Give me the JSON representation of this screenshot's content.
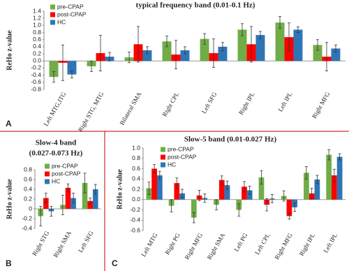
{
  "chart_data": [
    {
      "type": "bar",
      "panel": "A",
      "title_lines": [
        "typical frequency band (0.01-0.1 Hz)"
      ],
      "y_label": "ReHo z-value",
      "categories": [
        "Left MTG,ITG",
        "Right STG, MTG",
        "Bilateral SMA",
        "Right CPL",
        "Left SFG",
        "Right IPL",
        "Left IPL",
        "Right MFG"
      ],
      "series": [
        {
          "name": "pre-CPAP",
          "color": "#70ad47",
          "values": [
            -0.45,
            -0.15,
            0.1,
            0.55,
            0.62,
            0.88,
            1.08,
            0.45
          ],
          "errors": [
            0.15,
            0.15,
            0.15,
            0.15,
            0.15,
            0.17,
            0.17,
            0.15
          ]
        },
        {
          "name": "post-CPAP",
          "color": "#ff0000",
          "values": [
            -0.05,
            0.22,
            0.47,
            0.18,
            0.22,
            0.47,
            0.67,
            0.12
          ],
          "errors": [
            0.5,
            0.5,
            0.5,
            0.4,
            0.4,
            0.5,
            0.4,
            0.4
          ]
        },
        {
          "name": "HC",
          "color": "#2e75b6",
          "values": [
            -0.38,
            0.12,
            0.3,
            0.3,
            0.4,
            0.73,
            0.88,
            0.35
          ],
          "errors": [
            0.1,
            0.12,
            0.1,
            0.1,
            0.12,
            0.1,
            0.08,
            0.1
          ]
        }
      ],
      "ylim": [
        -0.8,
        1.4
      ],
      "yticks": [
        -0.8,
        -0.6,
        -0.4,
        -0.2,
        {
          "value": 0,
          "label": "0.0"
        },
        0.2,
        0.4,
        0.6,
        0.8,
        {
          "value": 1,
          "label": "1.0"
        },
        1.2,
        1.4
      ],
      "legend": "upper left"
    },
    {
      "type": "bar",
      "panel": "B",
      "title_lines": [
        "Slow-4 band",
        "(0.027-0.073 Hz)"
      ],
      "y_label": "ReHo z-value",
      "categories": [
        "Right STG",
        "Right SMA",
        "Left SFG"
      ],
      "series": [
        {
          "name": "pre-CPAP",
          "color": "#70ad47",
          "values": [
            -0.15,
            0.08,
            0.53
          ],
          "errors": [
            0.2,
            0.2,
            0.2
          ]
        },
        {
          "name": "post-CPAP",
          "color": "#ff0000",
          "values": [
            0.22,
            0.43,
            0.16
          ],
          "errors": [
            0.1,
            0.08,
            0.06
          ]
        },
        {
          "name": "HC",
          "color": "#2e75b6",
          "values": [
            -0.05,
            0.22,
            0.4
          ],
          "errors": [
            0.1,
            0.1,
            0.1
          ]
        }
      ],
      "ylim": [
        -0.4,
        0.8
      ],
      "yticks": [
        -0.4,
        -0.2,
        0,
        0.2,
        0.4,
        0.6,
        0.8
      ],
      "legend": "upper left"
    },
    {
      "type": "bar",
      "panel": "C",
      "title_lines": [
        "Slow-5 band (0.01-0.027 Hz)"
      ],
      "y_label": "ReHo z-value",
      "categories": [
        "Left MTG",
        "Right PG",
        "Right MFG",
        "Right SMA",
        "Left PG",
        "Left CPL",
        "Right MFG",
        "Right IPL",
        "Left IPL"
      ],
      "series": [
        {
          "name": "pre-CPAP",
          "color": "#70ad47",
          "values": [
            0.22,
            -0.12,
            -0.35,
            -0.1,
            -0.2,
            0.43,
            0.07,
            0.52,
            0.87
          ],
          "errors": [
            0.12,
            0.12,
            0.1,
            0.1,
            0.12,
            0.13,
            0.1,
            0.12,
            0.1
          ]
        },
        {
          "name": "post-CPAP",
          "color": "#ff0000",
          "values": [
            0.6,
            0.32,
            0.08,
            0.38,
            0.25,
            -0.1,
            -0.32,
            0.12,
            0.47
          ],
          "errors": [
            0.08,
            0.1,
            0.1,
            0.08,
            0.1,
            0.12,
            0.06,
            0.1,
            0.12
          ]
        },
        {
          "name": "HC",
          "color": "#2e75b6",
          "values": [
            0.47,
            0.12,
            0.03,
            0.28,
            0.18,
            0.02,
            -0.15,
            0.39,
            0.83
          ],
          "errors": [
            0.08,
            0.08,
            0.08,
            0.08,
            0.08,
            0.08,
            0.08,
            0.08,
            0.06
          ]
        }
      ],
      "ylim": [
        -0.6,
        1.0
      ],
      "yticks": [
        -0.6,
        -0.4,
        -0.2,
        {
          "value": 0,
          "label": "0.0"
        },
        0.2,
        0.4,
        0.6,
        0.8,
        {
          "value": 1,
          "label": "1.0"
        }
      ],
      "legend": "upper left"
    }
  ]
}
